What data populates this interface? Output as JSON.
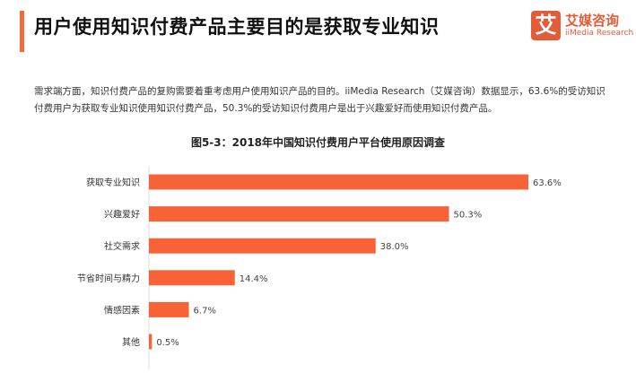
{
  "header": {
    "title": "用户使用知识付费产品主要目的是获取专业知识",
    "accent_color": "#f26b3a"
  },
  "logo": {
    "mark": "艾",
    "name_cn": "艾媒咨询",
    "name_en": "iiMedia Research"
  },
  "paragraph": "需求端方面，知识付费产品的复购需要着重考虑用户使用知识产品的目的。iiMedia Research（艾媒咨询）数据显示，63.6%的受访知识付费用户为获取专业知识使用知识付费产品，50.3%的受访知识付费用户是出于兴趣爱好而使用知识付费产品。",
  "chart_data": {
    "type": "bar",
    "orientation": "horizontal",
    "title": "图5-3：2018年中国知识付费用户平台使用原因调查",
    "categories": [
      "获取专业知识",
      "兴趣爱好",
      "社交需求",
      "节省时间与精力",
      "情感因素",
      "其他"
    ],
    "values": [
      63.6,
      50.3,
      38.0,
      14.4,
      6.7,
      0.5
    ],
    "labels": [
      "63.6%",
      "50.3%",
      "38.0%",
      "14.4%",
      "6.7%",
      "0.5%"
    ],
    "unit": "%",
    "bar_color": "#f76337",
    "grid": false,
    "legend": "none"
  }
}
